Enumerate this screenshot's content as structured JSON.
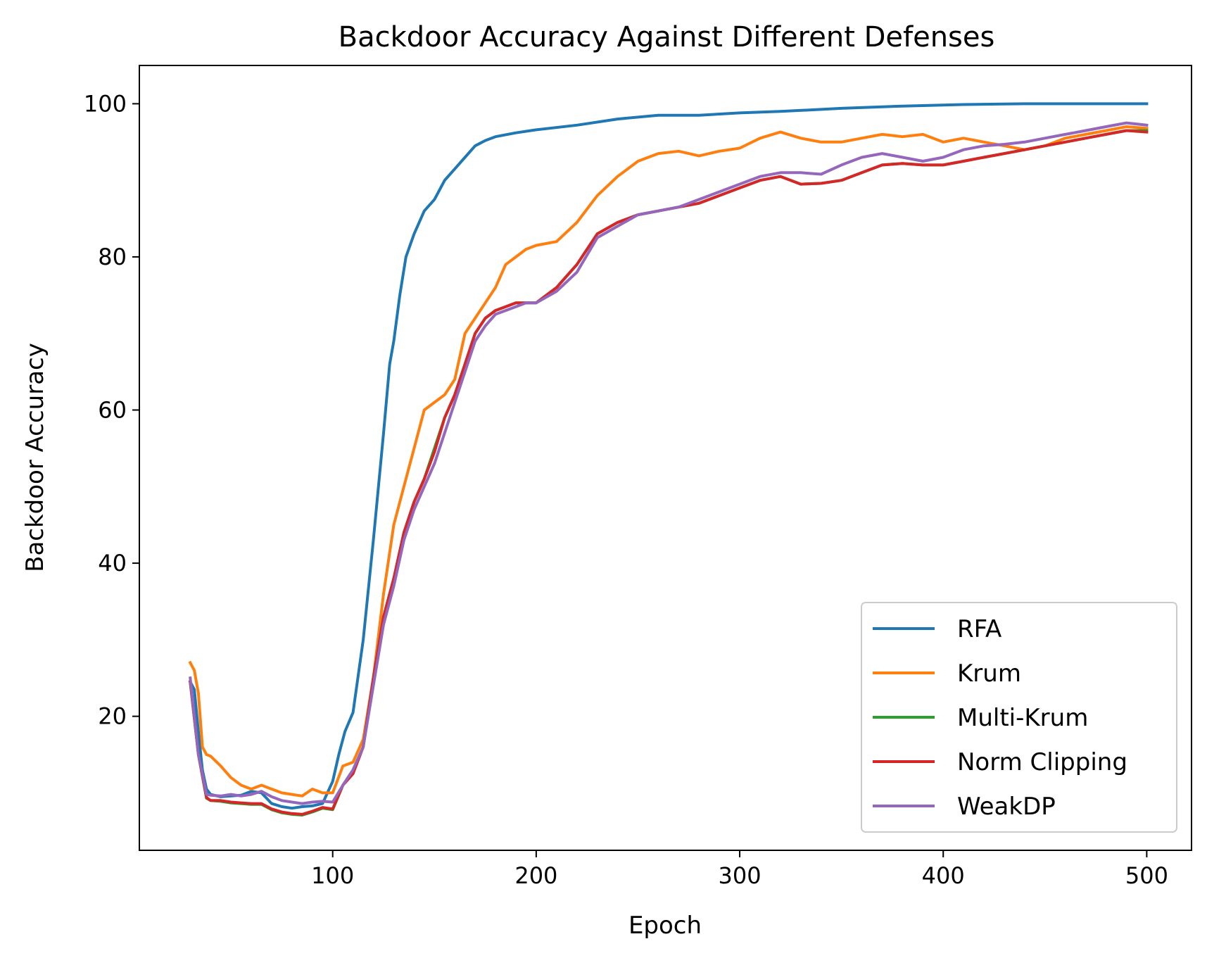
{
  "chart_data": {
    "type": "line",
    "title": "Backdoor Accuracy Against Different Defenses",
    "xlabel": "Epoch",
    "ylabel": "Backdoor Accuracy",
    "xlim": [
      5,
      522
    ],
    "ylim": [
      2.5,
      105
    ],
    "xticks": [
      100,
      200,
      300,
      400,
      500
    ],
    "yticks": [
      20,
      40,
      60,
      80,
      100
    ],
    "grid": false,
    "legend_position": "lower right",
    "series": [
      {
        "name": "RFA",
        "color": "#1f77b4",
        "x": [
          30,
          32,
          34,
          36,
          38,
          40,
          45,
          50,
          55,
          60,
          65,
          70,
          75,
          80,
          85,
          90,
          95,
          100,
          103,
          106,
          110,
          115,
          120,
          125,
          128,
          130,
          133,
          136,
          140,
          145,
          150,
          155,
          160,
          165,
          170,
          175,
          180,
          190,
          200,
          220,
          240,
          260,
          280,
          300,
          320,
          350,
          380,
          410,
          440,
          470,
          500
        ],
        "y": [
          24.5,
          23.5,
          18,
          13,
          10.5,
          9.8,
          9.5,
          9.6,
          9.7,
          10.2,
          10,
          8.6,
          8.2,
          8,
          8.2,
          8.3,
          8.6,
          11.5,
          15,
          18,
          20.5,
          30,
          43,
          57,
          66,
          69,
          75,
          80,
          83,
          86,
          87.5,
          90,
          91.5,
          93,
          94.5,
          95.2,
          95.7,
          96.2,
          96.6,
          97.2,
          98,
          98.5,
          98.5,
          98.8,
          99,
          99.4,
          99.7,
          99.9,
          100,
          100,
          100
        ]
      },
      {
        "name": "Krum",
        "color": "#ff7f0e",
        "x": [
          30,
          32,
          34,
          36,
          38,
          40,
          45,
          50,
          55,
          60,
          65,
          70,
          75,
          80,
          85,
          90,
          95,
          100,
          105,
          110,
          115,
          120,
          125,
          130,
          135,
          140,
          145,
          150,
          155,
          160,
          165,
          170,
          175,
          180,
          185,
          190,
          195,
          200,
          210,
          220,
          230,
          240,
          250,
          260,
          270,
          280,
          290,
          300,
          310,
          320,
          330,
          340,
          350,
          360,
          370,
          380,
          390,
          400,
          410,
          420,
          430,
          440,
          450,
          460,
          470,
          480,
          490,
          500
        ],
        "y": [
          27,
          26,
          23,
          16,
          15,
          14.8,
          13.5,
          12,
          11,
          10.5,
          11,
          10.5,
          10,
          9.8,
          9.6,
          10.5,
          10,
          10,
          13.5,
          14,
          17,
          25,
          36,
          45,
          50,
          55,
          60,
          61,
          62,
          64,
          70,
          72,
          74,
          76,
          79,
          80,
          81,
          81.5,
          82,
          84.5,
          88,
          90.5,
          92.5,
          93.5,
          93.8,
          93.2,
          93.8,
          94.2,
          95.5,
          96.3,
          95.5,
          95,
          95,
          95.5,
          96,
          95.7,
          96,
          95,
          95.5,
          95,
          94.5,
          94,
          94.5,
          95.5,
          96,
          96.5,
          97,
          96.8
        ]
      },
      {
        "name": "Multi-Krum",
        "color": "#2ca02c",
        "x": [
          30,
          34,
          38,
          40,
          45,
          50,
          55,
          60,
          65,
          70,
          75,
          80,
          85,
          90,
          95,
          100,
          105,
          110,
          115,
          120,
          125,
          130,
          135,
          140,
          145,
          150,
          155,
          160,
          165,
          170,
          175,
          180,
          185,
          190,
          195,
          200,
          210,
          220,
          230,
          240,
          250,
          260,
          270,
          280,
          290,
          300,
          310,
          320,
          330,
          340,
          350,
          360,
          370,
          380,
          390,
          400,
          410,
          420,
          430,
          440,
          450,
          460,
          470,
          480,
          490,
          500
        ],
        "y": [
          24.5,
          15,
          9.3,
          9,
          8.9,
          8.7,
          8.6,
          8.5,
          8.5,
          7.8,
          7.4,
          7.2,
          7.1,
          7.5,
          8,
          7.8,
          11,
          13,
          16,
          25,
          33,
          38,
          44,
          48,
          51,
          55,
          59,
          62,
          66,
          70,
          72,
          73,
          73.5,
          74,
          74,
          74,
          76,
          79,
          83,
          84.5,
          85.5,
          86,
          86.5,
          87,
          88,
          89,
          90,
          90.5,
          89.5,
          89.6,
          90,
          91,
          92,
          92.2,
          92,
          92,
          92.5,
          93,
          93.5,
          94,
          94.5,
          95,
          95.5,
          96,
          96.5,
          96.5
        ]
      },
      {
        "name": "Norm Clipping",
        "color": "#d62728",
        "x": [
          30,
          34,
          38,
          40,
          45,
          50,
          55,
          60,
          65,
          70,
          75,
          80,
          85,
          90,
          95,
          100,
          105,
          110,
          115,
          120,
          125,
          130,
          135,
          140,
          145,
          150,
          155,
          160,
          165,
          170,
          175,
          180,
          185,
          190,
          195,
          200,
          210,
          220,
          230,
          240,
          250,
          260,
          270,
          280,
          290,
          300,
          310,
          320,
          330,
          340,
          350,
          360,
          370,
          380,
          390,
          400,
          410,
          420,
          430,
          440,
          450,
          460,
          470,
          480,
          490,
          500
        ],
        "y": [
          24.5,
          15,
          9.4,
          9,
          9,
          8.8,
          8.7,
          8.6,
          8.6,
          7.9,
          7.5,
          7.3,
          7.2,
          7.6,
          8.1,
          7.9,
          11,
          12.5,
          16,
          25,
          33,
          38,
          44,
          48,
          51,
          54.5,
          59,
          62,
          66,
          70,
          72,
          73,
          73.5,
          74,
          74,
          74,
          76,
          79,
          83,
          84.5,
          85.5,
          86,
          86.5,
          87,
          88,
          89,
          90,
          90.5,
          89.5,
          89.6,
          90,
          91,
          92,
          92.2,
          92,
          92,
          92.5,
          93,
          93.5,
          94,
          94.5,
          95,
          95.5,
          96,
          96.5,
          96.3
        ]
      },
      {
        "name": "WeakDP",
        "color": "#9467bd",
        "x": [
          30,
          34,
          38,
          40,
          45,
          50,
          55,
          60,
          65,
          70,
          75,
          80,
          85,
          90,
          95,
          100,
          105,
          110,
          115,
          120,
          125,
          130,
          135,
          140,
          145,
          150,
          155,
          160,
          165,
          170,
          175,
          180,
          185,
          190,
          195,
          200,
          210,
          220,
          230,
          240,
          250,
          260,
          270,
          280,
          290,
          300,
          310,
          320,
          330,
          340,
          350,
          360,
          370,
          380,
          390,
          400,
          410,
          420,
          430,
          440,
          450,
          460,
          470,
          480,
          490,
          500
        ],
        "y": [
          25,
          15,
          9.8,
          9.7,
          9.6,
          9.8,
          9.6,
          9.8,
          10.2,
          9.5,
          9,
          8.8,
          8.6,
          8.8,
          8.9,
          8.8,
          11,
          13,
          16,
          24,
          32,
          37,
          43,
          47,
          50,
          53,
          57,
          61,
          65,
          69,
          71,
          72.5,
          73,
          73.5,
          74,
          74,
          75.5,
          78,
          82.5,
          84,
          85.5,
          86,
          86.5,
          87.5,
          88.5,
          89.5,
          90.5,
          91,
          91,
          90.8,
          92,
          93,
          93.5,
          93,
          92.5,
          93,
          94,
          94.5,
          94.7,
          95,
          95.5,
          96,
          96.5,
          97,
          97.5,
          97.2
        ]
      }
    ]
  }
}
